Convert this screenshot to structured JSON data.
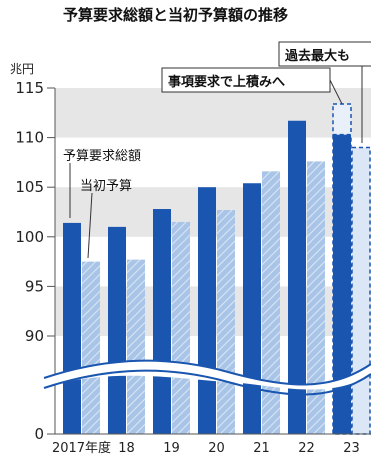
{
  "chart_data": {
    "type": "bar",
    "title": "予算要求総額と当初予算額の推移",
    "ylabel": "兆円",
    "ylim": [
      85,
      115
    ],
    "yticks": [
      0,
      90,
      95,
      100,
      105,
      110,
      115
    ],
    "axis_break": true,
    "categories": [
      "2017年度",
      "18",
      "19",
      "20",
      "21",
      "22",
      "23"
    ],
    "series": [
      {
        "name": "予算要求総額",
        "color": "#1a56b0",
        "values": [
          101.4,
          101.0,
          102.8,
          105.0,
          105.4,
          111.7,
          110.3
        ],
        "dashed_last": true
      },
      {
        "name": "当初予算",
        "color": "#a8c4e6",
        "values": [
          97.5,
          97.7,
          101.5,
          102.7,
          106.6,
          107.6,
          109.0
        ],
        "dashed_last": true
      }
    ],
    "annotations": [
      {
        "text": "事項要求で上積みへ",
        "category": "23"
      },
      {
        "text": "過去最大も",
        "category": "23"
      }
    ],
    "grid": "horizontal bands"
  }
}
